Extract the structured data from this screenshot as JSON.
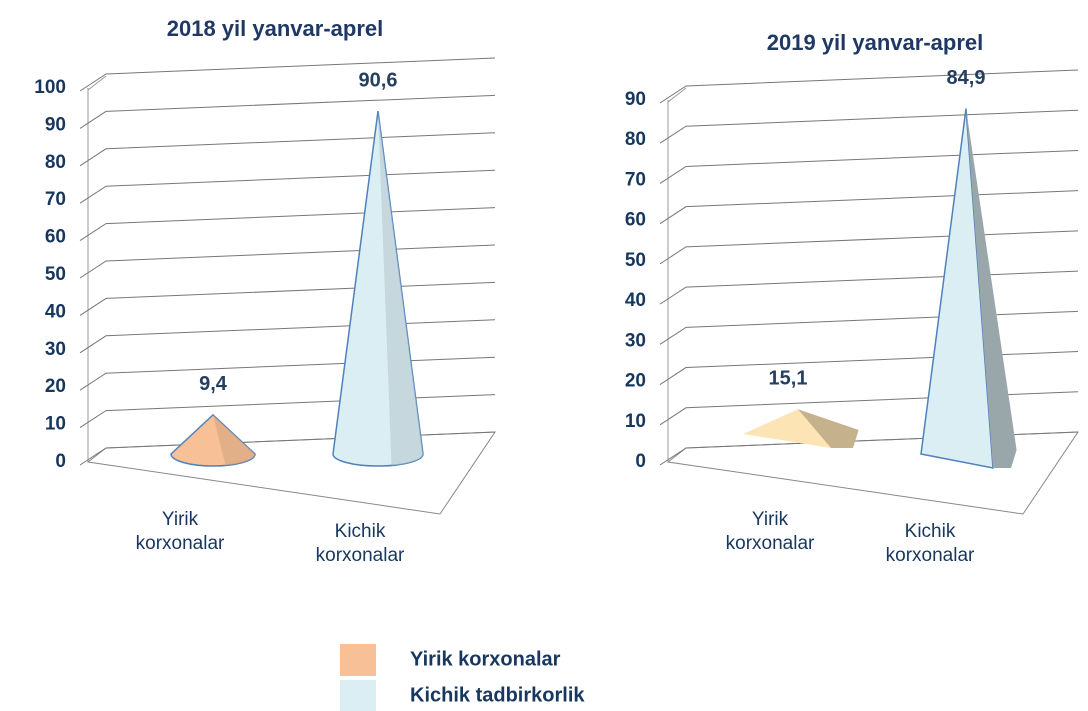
{
  "chart_data": [
    {
      "type": "bar",
      "shape": "cone",
      "title": "2018 yil yanvar-aprel",
      "categories": [
        "Yirik korxonalar",
        "Kichik korxonalar"
      ],
      "values": [
        9.4,
        90.6
      ],
      "value_labels": [
        "9,4",
        "90,6"
      ],
      "colors": [
        "#f8c096",
        "#daeef3"
      ],
      "ylim": [
        0,
        100
      ],
      "yticks": [
        0,
        10,
        20,
        30,
        40,
        50,
        60,
        70,
        80,
        90,
        100
      ],
      "grid": true
    },
    {
      "type": "bar",
      "shape": "pyramid",
      "title": "2019 yil yanvar-aprel",
      "categories": [
        "Yirik korxonalar",
        "Kichik korxonalar"
      ],
      "values": [
        15.1,
        84.9
      ],
      "value_labels": [
        "15,1",
        "84,9"
      ],
      "colors": [
        "#fde4b4",
        "#daeef3"
      ],
      "ylim": [
        0,
        90
      ],
      "yticks": [
        0,
        10,
        20,
        30,
        40,
        50,
        60,
        70,
        80,
        90
      ],
      "grid": true
    }
  ],
  "legend": {
    "items": [
      {
        "label": "Yirik korxonalar",
        "color": "#f8c096"
      },
      {
        "label": "Kichik tadbirkorlik",
        "color": "#daeef3"
      }
    ]
  }
}
